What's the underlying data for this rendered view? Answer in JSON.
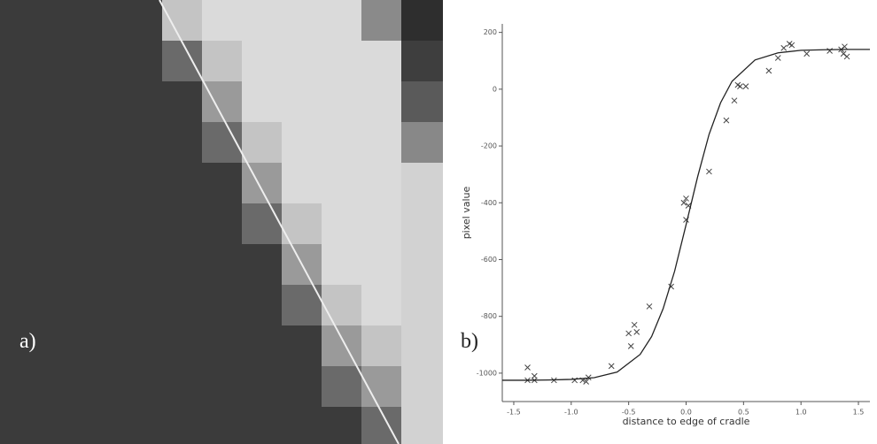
{
  "panel_labels": {
    "a": "a)",
    "b": "b)"
  },
  "chart_data": {
    "type": "scatter",
    "xlabel": "distance to edge of cradle",
    "ylabel": "pixel value",
    "xlim": [
      -1.6,
      1.6
    ],
    "ylim": [
      -1100,
      230
    ],
    "xticks": [
      -1.5,
      {
        "value": -1.0,
        "label": "-1.0"
      },
      -0.5,
      {
        "value": 0.0,
        "label": "0.0"
      },
      0.5,
      {
        "value": 1.0,
        "label": "1.0"
      },
      1.5
    ],
    "yticks": [
      200,
      0,
      -200,
      -400,
      -600,
      -800,
      -1000
    ],
    "series": [
      {
        "style": "cross",
        "color": "#444",
        "x": [
          -1.38,
          -1.38,
          -1.32,
          -1.32,
          -1.15,
          -0.97,
          -0.9,
          -0.87,
          -0.85,
          -0.65,
          -0.5,
          -0.48,
          -0.45,
          -0.43,
          -0.32,
          -0.13,
          -0.02,
          0.0,
          0.0,
          0.02,
          0.2,
          0.35,
          0.42,
          0.45,
          0.47,
          0.52,
          0.72,
          0.8,
          0.85,
          0.9,
          0.92,
          1.05,
          1.25,
          1.35,
          1.37,
          1.38,
          1.4
        ],
        "values": [
          -980,
          -1025,
          -1010,
          -1025,
          -1025,
          -1025,
          -1025,
          -1030,
          -1015,
          -975,
          -860,
          -905,
          -830,
          -855,
          -765,
          -695,
          -400,
          -385,
          -460,
          -410,
          -290,
          -110,
          -40,
          15,
          10,
          10,
          65,
          110,
          145,
          160,
          155,
          125,
          135,
          140,
          125,
          150,
          115
        ]
      },
      {
        "style": "line",
        "color": "#222",
        "x": [
          -1.6,
          -1.4,
          -1.2,
          -1.0,
          -0.8,
          -0.6,
          -0.4,
          -0.3,
          -0.2,
          -0.1,
          0,
          0.1,
          0.2,
          0.3,
          0.4,
          0.6,
          0.8,
          1.0,
          1.2,
          1.4,
          1.6
        ],
        "values": [
          -1025,
          -1025,
          -1024,
          -1022,
          -1016,
          -996,
          -934,
          -871,
          -773,
          -641,
          -477,
          -309,
          -159,
          -48,
          28,
          103,
          128,
          137,
          139,
          140,
          140
        ]
      }
    ]
  }
}
